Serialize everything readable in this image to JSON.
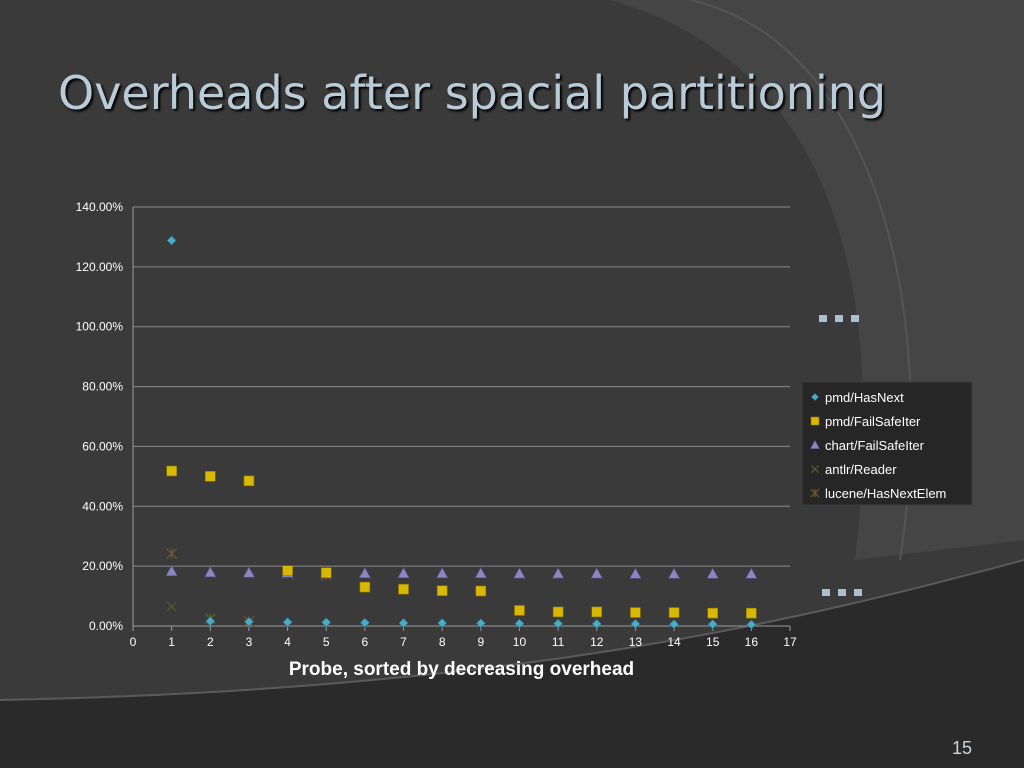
{
  "slide": {
    "title": "Overheads after spacial partitioning",
    "page_number": "15",
    "accent_color": "#b9cbd6"
  },
  "chart_data": {
    "type": "scatter",
    "title": "",
    "xlabel": "Probe, sorted by decreasing overhead",
    "ylabel": "",
    "xlim": [
      0,
      17
    ],
    "ylim": [
      0,
      140
    ],
    "x_ticks": [
      0,
      1,
      2,
      3,
      4,
      5,
      6,
      7,
      8,
      9,
      10,
      11,
      12,
      13,
      14,
      15,
      16,
      17
    ],
    "y_ticks": [
      "0.00%",
      "20.00%",
      "40.00%",
      "60.00%",
      "80.00%",
      "100.00%",
      "120.00%",
      "140.00%"
    ],
    "y_unit": "percent",
    "grid": "horizontal",
    "legend_position": "right",
    "series": [
      {
        "name": "pmd/HasNext",
        "marker": "diamond",
        "color": "#4bacc6",
        "x": [
          1,
          2,
          3,
          4,
          5,
          6,
          7,
          8,
          9,
          10,
          11,
          12,
          13,
          14,
          15,
          16
        ],
        "y": [
          128.8,
          1.6,
          1.4,
          1.3,
          1.2,
          1.1,
          1.0,
          1.0,
          0.9,
          0.8,
          0.8,
          0.7,
          0.7,
          0.6,
          0.6,
          0.5
        ]
      },
      {
        "name": "pmd/FailSafeIter",
        "marker": "square",
        "color": "#d8b800",
        "x": [
          1,
          2,
          3,
          4,
          5,
          6,
          7,
          8,
          9,
          10,
          11,
          12,
          13,
          14,
          15,
          16
        ],
        "y": [
          51.8,
          50.0,
          48.5,
          18.5,
          17.8,
          13.0,
          12.3,
          11.8,
          11.7,
          5.2,
          4.7,
          4.7,
          4.5,
          4.5,
          4.3,
          4.3
        ]
      },
      {
        "name": "chart/FailSafeIter",
        "marker": "triangle",
        "color": "#8c87c0",
        "x": [
          1,
          2,
          3,
          4,
          5,
          6,
          7,
          8,
          9,
          10,
          11,
          12,
          13,
          14,
          15,
          16
        ],
        "y": [
          18.3,
          17.9,
          17.8,
          17.8,
          17.6,
          17.6,
          17.6,
          17.6,
          17.6,
          17.5,
          17.5,
          17.5,
          17.4,
          17.4,
          17.4,
          17.4
        ]
      },
      {
        "name": "antlr/Reader",
        "marker": "x",
        "color": "#4a5a2a",
        "x": [
          1,
          2
        ],
        "y": [
          6.5,
          2.7
        ]
      },
      {
        "name": "lucene/HasNextElem",
        "marker": "star",
        "color": "#6e5630",
        "x": [
          1,
          2,
          3,
          4,
          5
        ],
        "y": [
          24.2,
          2.4,
          1.5,
          17.5,
          17.0
        ]
      }
    ]
  }
}
